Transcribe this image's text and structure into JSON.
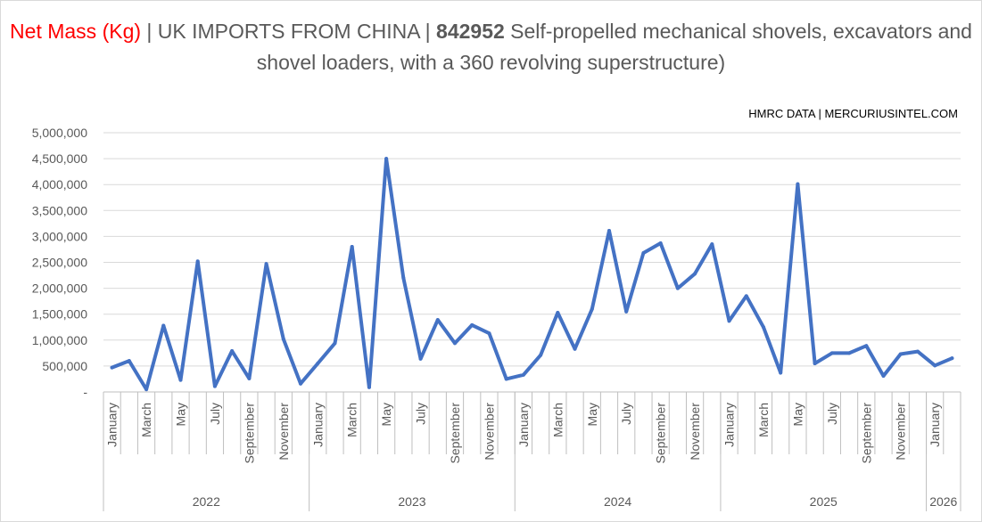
{
  "title": {
    "metric": "Net Mass (Kg)",
    "sep1": " | UK IMPORTS FROM CHINA | ",
    "code": "842952",
    "description": " Self-propelled mechanical shovels, excavators and shovel loaders, with a 360  revolving superstructure)"
  },
  "source": "HMRC DATA | MERCURIUSINTEL.COM",
  "chart_data": {
    "type": "line",
    "title": "Net Mass (Kg) | UK IMPORTS FROM CHINA | 842952 Self-propelled mechanical shovels, excavators and shovel loaders, with a 360  revolving superstructure)",
    "ylim": [
      0,
      5000000
    ],
    "yticks": [
      0,
      500000,
      1000000,
      1500000,
      2000000,
      2500000,
      3000000,
      3500000,
      4000000,
      4500000,
      5000000
    ],
    "ytick_labels": [
      "-",
      "500,000",
      "1,000,000",
      "1,500,000",
      "2,000,000",
      "2,500,000",
      "3,000,000",
      "3,500,000",
      "4,000,000",
      "4,500,000",
      "5,000,000"
    ],
    "grid": true,
    "line_color": "#4472c4",
    "years": [
      {
        "label": "2022",
        "start": 0,
        "count": 12
      },
      {
        "label": "2023",
        "start": 12,
        "count": 12
      },
      {
        "label": "2024",
        "start": 24,
        "count": 12
      },
      {
        "label": "2025",
        "start": 36,
        "count": 12
      },
      {
        "label": "2026",
        "start": 48,
        "count": 2
      }
    ],
    "x": [
      "January",
      "February",
      "March",
      "April",
      "May",
      "June",
      "July",
      "August",
      "September",
      "October",
      "November",
      "December",
      "January",
      "February",
      "March",
      "April",
      "May",
      "June",
      "July",
      "August",
      "September",
      "October",
      "November",
      "December",
      "January",
      "February",
      "March",
      "April",
      "May",
      "June",
      "July",
      "August",
      "September",
      "October",
      "November",
      "December",
      "January",
      "February",
      "March",
      "April",
      "May",
      "June",
      "July",
      "August",
      "September",
      "October",
      "November",
      "December",
      "January",
      "February"
    ],
    "x_tick_labels": [
      "January",
      "",
      "March",
      "",
      "May",
      "",
      "July",
      "",
      "September",
      "",
      "November",
      "",
      "January",
      "",
      "March",
      "",
      "May",
      "",
      "July",
      "",
      "September",
      "",
      "November",
      "",
      "January",
      "",
      "March",
      "",
      "May",
      "",
      "July",
      "",
      "September",
      "",
      "November",
      "",
      "January",
      "",
      "March",
      "",
      "May",
      "",
      "July",
      "",
      "September",
      "",
      "November",
      "",
      "January",
      ""
    ],
    "values": [
      470000,
      600000,
      50000,
      1280000,
      230000,
      2520000,
      110000,
      790000,
      260000,
      2470000,
      1020000,
      160000,
      550000,
      940000,
      2800000,
      90000,
      4500000,
      2200000,
      640000,
      1390000,
      940000,
      1290000,
      1130000,
      250000,
      330000,
      710000,
      1530000,
      830000,
      1600000,
      3110000,
      1550000,
      2680000,
      2870000,
      2000000,
      2280000,
      2850000,
      1370000,
      1850000,
      1250000,
      370000,
      4010000,
      550000,
      750000,
      750000,
      890000,
      310000,
      730000,
      780000,
      510000,
      650000
    ]
  }
}
